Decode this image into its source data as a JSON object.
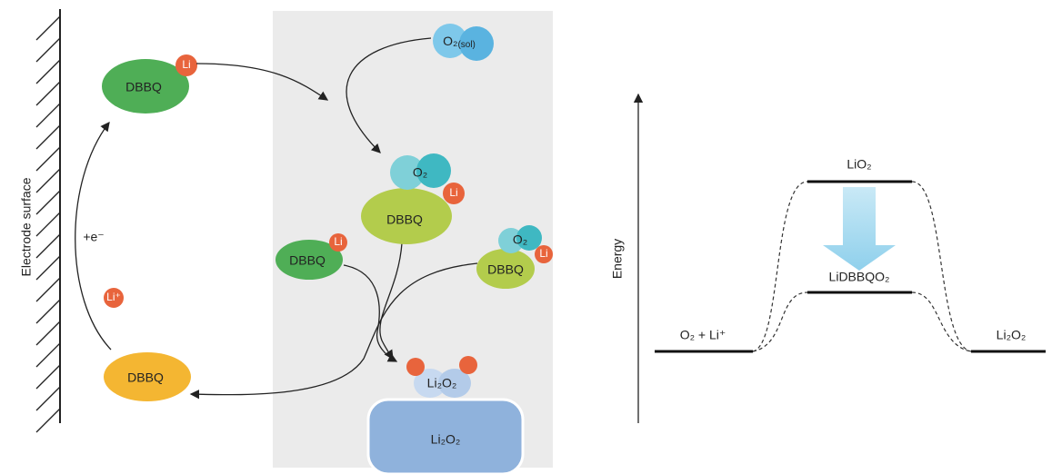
{
  "electrode": {
    "label": "Electrode surface"
  },
  "cycle": {
    "dbbq_top": "DBBQ",
    "li_top": "Li",
    "electron": "+e⁻",
    "li_ion": "Li⁺",
    "dbbq_bottom": "DBBQ"
  },
  "solution": {
    "o2_sol": {
      "main": "O₂",
      "sub": "(sol)"
    },
    "complex": {
      "o2": "O₂",
      "li": "Li",
      "dbbq": "DBBQ"
    },
    "li_dbbq": {
      "dbbq": "DBBQ",
      "li": "Li"
    },
    "complex_right": {
      "o2": "O₂",
      "li": "Li",
      "dbbq": "DBBQ"
    },
    "li2o2_cluster": "Li₂O₂",
    "li2o2_solid": "Li₂O₂"
  },
  "energy_diagram": {
    "axis_label": "Energy",
    "levels": [
      "O₂ + Li⁺",
      "LiO₂",
      "LiDBBQO₂",
      "Li₂O₂"
    ]
  }
}
